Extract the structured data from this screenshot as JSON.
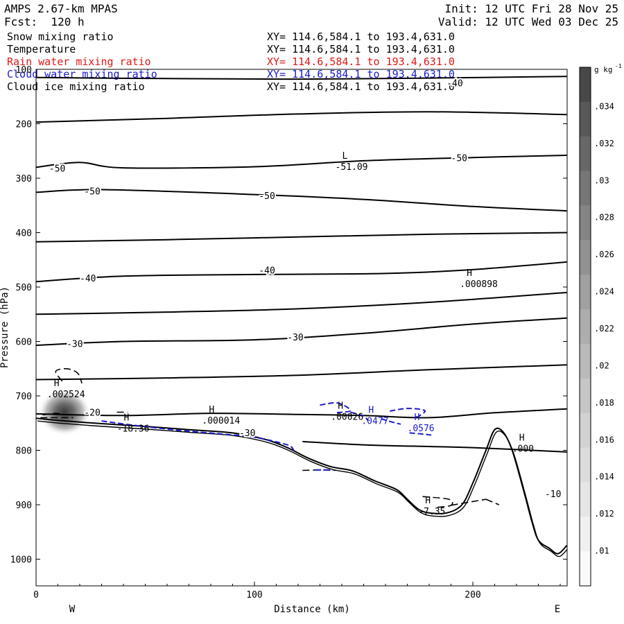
{
  "header": {
    "model": "AMPS 2.67-km MPAS",
    "fcst": "Fcst:  120 h",
    "init": "Init: 12 UTC Fri 28 Nov 25",
    "valid": "Valid: 12 UTC Wed 03 Dec 25"
  },
  "fields": [
    {
      "name": "Snow mixing ratio",
      "xy": "XY= 114.6,584.1 to 193.4,631.0",
      "color": "#000000"
    },
    {
      "name": "Temperature",
      "xy": "XY= 114.6,584.1 to 193.4,631.0",
      "color": "#000000"
    },
    {
      "name": "Rain water mixing ratio",
      "xy": "XY= 114.6,584.1 to 193.4,631.0",
      "color": "#e01818"
    },
    {
      "name": "Cloud water mixing ratio",
      "xy": "XY= 114.6,584.1 to 193.4,631.0",
      "color": "#1a1acc"
    },
    {
      "name": "Cloud ice mixing ratio",
      "xy": "XY= 114.6,584.1 to 193.4,631.0",
      "color": "#000000"
    }
  ],
  "chart_data": {
    "type": "line",
    "title": "",
    "xlabel": "Distance (km)",
    "ylabel": "Pressure (hPa)",
    "xlim": [
      0,
      243
    ],
    "ylim": [
      1050,
      100
    ],
    "x_ticks": [
      0,
      100,
      200
    ],
    "y_ticks": [
      100,
      200,
      300,
      400,
      500,
      600,
      700,
      800,
      900,
      1000
    ],
    "x_end_labels": {
      "left": "W",
      "right": "E"
    },
    "colorbar": {
      "units": "g kg",
      "units_exp": "-1",
      "ticks": [
        ".01",
        ".012",
        ".014",
        ".016",
        ".018",
        ".02",
        ".022",
        ".024",
        ".026",
        ".028",
        ".03",
        ".032",
        ".034"
      ],
      "colors": [
        "#fafafa",
        "#f0f0f0",
        "#e6e6e6",
        "#dcdcdc",
        "#d2d2d2",
        "#c6c6c6",
        "#bababa",
        "#adadad",
        "#a0a0a0",
        "#929292",
        "#848484",
        "#767676",
        "#676767",
        "#585858",
        "#484848"
      ]
    },
    "temperature_isotherms": [
      {
        "x": [
          0,
          60,
          120,
          180,
          243
        ],
        "y": [
          115,
          117,
          118,
          116,
          113
        ]
      },
      {
        "x": [
          0,
          60,
          120,
          180,
          243
        ],
        "y": [
          197,
          190,
          182,
          178,
          183
        ]
      },
      {
        "x": [
          0,
          20,
          40,
          100,
          150,
          200,
          243
        ],
        "y": [
          280,
          271,
          281,
          279,
          268,
          262,
          258
        ]
      },
      {
        "x": [
          0,
          30,
          100,
          150,
          200,
          243
        ],
        "y": [
          326,
          321,
          330,
          339,
          352,
          360
        ]
      },
      {
        "x": [
          0,
          60,
          120,
          180,
          243
        ],
        "y": [
          417,
          413,
          408,
          403,
          400
        ]
      },
      {
        "x": [
          0,
          40,
          100,
          160,
          200,
          243
        ],
        "y": [
          490,
          480,
          477,
          475,
          468,
          454
        ]
      },
      {
        "x": [
          0,
          60,
          120,
          180,
          243
        ],
        "y": [
          550,
          546,
          540,
          528,
          510
        ]
      },
      {
        "x": [
          0,
          40,
          100,
          150,
          200,
          243
        ],
        "y": [
          607,
          600,
          597,
          585,
          568,
          557
        ]
      },
      {
        "x": [
          0,
          60,
          120,
          180,
          243
        ],
        "y": [
          670,
          667,
          662,
          652,
          643
        ]
      },
      {
        "x": [
          0,
          40,
          80,
          120,
          150,
          180,
          210,
          243
        ],
        "y": [
          733,
          736,
          732,
          734,
          736,
          740,
          731,
          724
        ]
      },
      {
        "x": [
          122,
          150,
          180,
          200,
          243
        ],
        "y": [
          784,
          790,
          793,
          795,
          803
        ]
      }
    ],
    "isotherm_labels": [
      {
        "text": "-40",
        "x": 188,
        "y": 126
      },
      {
        "text": "-50",
        "x": 6,
        "y": 283
      },
      {
        "text": "-50",
        "x": 190,
        "y": 264
      },
      {
        "text": "-50",
        "x": 22,
        "y": 325
      },
      {
        "text": "-50",
        "x": 102,
        "y": 333
      },
      {
        "text": "-40",
        "x": 20,
        "y": 485
      },
      {
        "text": "-40",
        "x": 102,
        "y": 470
      },
      {
        "text": "-30",
        "x": 14,
        "y": 605
      },
      {
        "text": "-30",
        "x": 115,
        "y": 593
      },
      {
        "text": "-20",
        "x": 22,
        "y": 731
      },
      {
        "text": "-30",
        "x": 93,
        "y": 769
      },
      {
        "text": "-10",
        "x": 233,
        "y": 881
      }
    ],
    "terrain": {
      "x": [
        0,
        10,
        30,
        50,
        70,
        90,
        105,
        115,
        125,
        135,
        145,
        155,
        165,
        170,
        175,
        180,
        188,
        195,
        200,
        206,
        210,
        214,
        218,
        223,
        227,
        230,
        235,
        239,
        243
      ],
      "y": [
        741,
        745,
        751,
        756,
        762,
        768,
        780,
        795,
        815,
        830,
        838,
        856,
        872,
        890,
        908,
        915,
        915,
        900,
        860,
        800,
        762,
        767,
        800,
        870,
        930,
        965,
        980,
        990,
        975
      ]
    },
    "cloud_water_segments": [
      [
        [
          30,
          746
        ],
        [
          45,
          754
        ],
        [
          65,
          763
        ],
        [
          85,
          770
        ],
        [
          100,
          776
        ],
        [
          115,
          790
        ],
        [
          118,
          800
        ]
      ],
      [
        [
          128,
          836
        ],
        [
          136,
          836
        ]
      ],
      [
        [
          130,
          717
        ],
        [
          138,
          713
        ],
        [
          144,
          727
        ],
        [
          137,
          731
        ]
      ],
      [
        [
          144,
          730
        ],
        [
          150,
          737
        ],
        [
          152,
          746
        ]
      ],
      [
        [
          158,
          742
        ],
        [
          163,
          748
        ],
        [
          167,
          752
        ]
      ],
      [
        [
          162,
          728
        ],
        [
          170,
          723
        ],
        [
          178,
          727
        ],
        [
          175,
          738
        ]
      ],
      [
        [
          171,
          768
        ],
        [
          177,
          770
        ],
        [
          181,
          772
        ]
      ]
    ],
    "snow_contour_segments": [
      [
        [
          12,
          673
        ],
        [
          9,
          655
        ],
        [
          14,
          650
        ],
        [
          19,
          658
        ],
        [
          21,
          677
        ]
      ],
      [
        [
          3,
          735
        ],
        [
          9,
          732
        ],
        [
          14,
          735
        ]
      ],
      [
        [
          2,
          740
        ],
        [
          17,
          740
        ]
      ],
      [
        [
          37,
          730
        ],
        [
          42,
          730
        ]
      ],
      [
        [
          177,
          885
        ],
        [
          189,
          890
        ],
        [
          190,
          901
        ],
        [
          183,
          905
        ]
      ],
      [
        [
          190,
          901
        ],
        [
          206,
          890
        ]
      ],
      [
        [
          206,
          890
        ],
        [
          212,
          900
        ]
      ],
      [
        [
          122,
          837
        ],
        [
          130,
          836
        ],
        [
          137,
          837
        ]
      ]
    ],
    "snow_shade": {
      "x": 13,
      "y": 730,
      "max": ".034"
    },
    "extrema": [
      {
        "kind": "L",
        "value": "-51.09",
        "x": 137,
        "y": 272,
        "color": "#000000"
      },
      {
        "kind": "H",
        "value": ".000898",
        "x": 194,
        "y": 487,
        "color": "#000000"
      },
      {
        "kind": "H",
        "value": ".002524",
        "x": 5,
        "y": 690,
        "color": "#000000"
      },
      {
        "kind": "H",
        "value": "-18.36",
        "x": 37,
        "y": 753,
        "color": "#000000"
      },
      {
        "kind": "H",
        "value": ".000014",
        "x": 76,
        "y": 738,
        "color": "#000000"
      },
      {
        "kind": "H",
        "value": ".00026",
        "x": 135,
        "y": 731,
        "color": "#000000"
      },
      {
        "kind": "H",
        "value": ".0477",
        "x": 149,
        "y": 739,
        "color": "#1a1acc"
      },
      {
        "kind": "H",
        "value": ".0576",
        "x": 170,
        "y": 752,
        "color": "#1a1acc"
      },
      {
        "kind": "H",
        "value": ".000",
        "x": 218,
        "y": 790,
        "color": "#000000"
      },
      {
        "kind": "H",
        "value": "-7.35",
        "x": 175,
        "y": 905,
        "color": "#000000"
      }
    ]
  }
}
